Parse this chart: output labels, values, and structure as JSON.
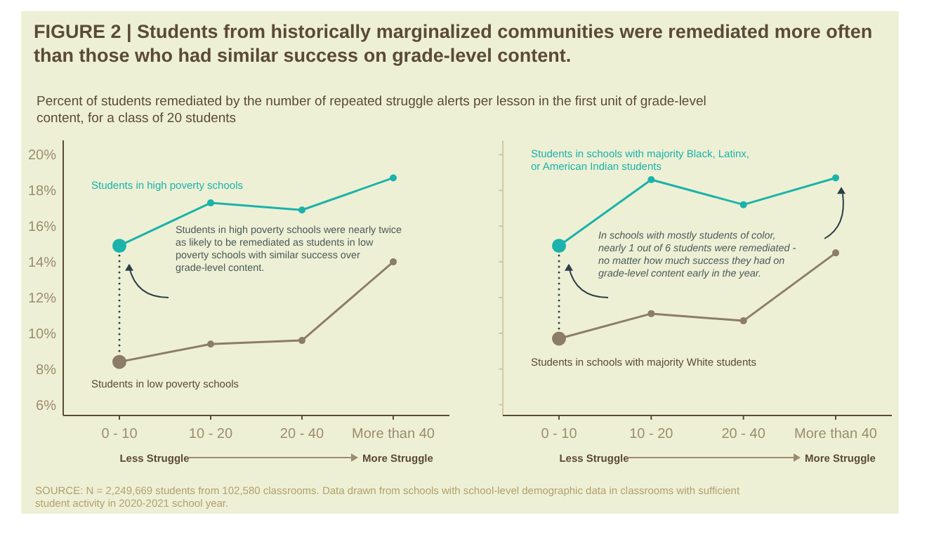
{
  "chart_data": [
    {
      "type": "line",
      "title": "FIGURE 2 | Students from historically marginalized communities were remediated more often than those who had similar success on grade-level content.",
      "subtitle": "Percent of students remediated by the number of repeated struggle alerts per lesson in the first unit of grade-level content, for a class of 20 students",
      "categories": [
        "0 - 10",
        "10 - 20",
        "20 - 40",
        "More than 40"
      ],
      "ylim": [
        5.4,
        20.8
      ],
      "yticks": [
        {
          "value": 6,
          "label": "6%"
        },
        {
          "value": 8,
          "label": "8%"
        },
        {
          "value": 10,
          "label": "10%"
        },
        {
          "value": 12,
          "label": "12%"
        },
        {
          "value": 14,
          "label": "14%"
        },
        {
          "value": 16,
          "label": "16%"
        },
        {
          "value": 18,
          "label": "18%"
        },
        {
          "value": 20,
          "label": "20%"
        }
      ],
      "grid": false,
      "marker": "circle",
      "line_style": "solid",
      "series": [
        {
          "name": "Students in high poverty schools",
          "color": "#1bb3ab",
          "values": [
            14.9,
            17.3,
            16.9,
            18.7
          ]
        },
        {
          "name": "Students in low poverty schools",
          "color": "#8c7d66",
          "values": [
            8.4,
            9.4,
            9.6,
            14.0
          ]
        }
      ],
      "annotations": [
        "Students in high poverty schools were nearly twice as likely to be remediated as students in low poverty schools with similar success over grade-level content.",
        "Less Struggle",
        "More Struggle",
        "SOURCE: N = 2,249,669 students from 102,580 classrooms. Data drawn from schools with school-level demographic data in classrooms with sufficient student activity in 2020-2021 school year."
      ]
    },
    {
      "type": "line",
      "categories": [
        "0 - 10",
        "10 - 20",
        "20 - 40",
        "More than 40"
      ],
      "ylim": [
        5.4,
        20.8
      ],
      "yticks": [
        {
          "value": 6,
          "label": null
        },
        {
          "value": 8,
          "label": null
        },
        {
          "value": 10,
          "label": null
        },
        {
          "value": 12,
          "label": null
        },
        {
          "value": 14,
          "label": null
        },
        {
          "value": 16,
          "label": null
        },
        {
          "value": 18,
          "label": null
        },
        {
          "value": 20,
          "label": null
        }
      ],
      "tick_labels": "x",
      "grid": false,
      "marker": "circle",
      "line_style": "solid",
      "series": [
        {
          "name": "Students in schools with majority Black, Latinx, or American Indian students",
          "color": "#1bb3ab",
          "values": [
            14.9,
            18.6,
            17.2,
            18.7
          ]
        },
        {
          "name": "Students in schools with majority White students",
          "color": "#8c7d66",
          "values": [
            9.7,
            11.1,
            10.7,
            14.5
          ]
        }
      ],
      "annotations": [
        "In schools with mostly students of color, nearly 1 out of 6 students were remediated - no matter how much success they had on grade-level content early in the year.",
        "Less Struggle",
        "More Struggle"
      ]
    }
  ]
}
